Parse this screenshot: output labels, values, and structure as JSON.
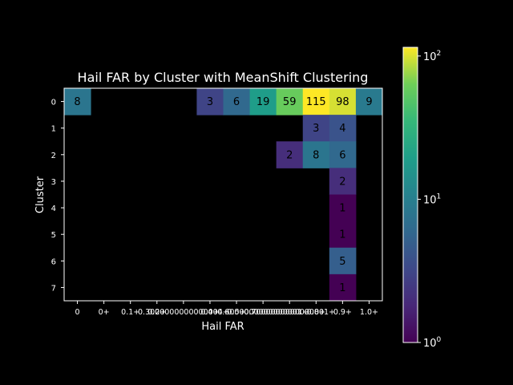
{
  "chart_data": {
    "type": "heatmap",
    "title": "Hail FAR by Cluster with MeanShift Clustering",
    "xlabel": "Hail FAR",
    "ylabel": "Cluster",
    "x_categories": [
      "0",
      "0+",
      "0.1",
      "0.2",
      "0.3000000000000004",
      "0.4",
      "0.5",
      "0.6000000000000001",
      "0.7000000000000001",
      "0.8",
      "0.9",
      "1.0+"
    ],
    "x_tick_labels": [
      "0",
      "0+",
      "0.1+",
      "0.2+",
      "0.3000000000000004+",
      "0.4+",
      "0.5+",
      "0.6000000000000001+",
      "0.7000000000000001+",
      "0.8+",
      "0.9+",
      "1.0+"
    ],
    "y_categories": [
      "0",
      "1",
      "2",
      "3",
      "4",
      "5",
      "6",
      "7"
    ],
    "cells": [
      {
        "row": 0,
        "col": 0,
        "value": 8
      },
      {
        "row": 0,
        "col": 5,
        "value": 3
      },
      {
        "row": 0,
        "col": 6,
        "value": 6
      },
      {
        "row": 0,
        "col": 7,
        "value": 19
      },
      {
        "row": 0,
        "col": 8,
        "value": 59
      },
      {
        "row": 0,
        "col": 9,
        "value": 115
      },
      {
        "row": 0,
        "col": 10,
        "value": 98
      },
      {
        "row": 0,
        "col": 11,
        "value": 9
      },
      {
        "row": 1,
        "col": 9,
        "value": 3
      },
      {
        "row": 1,
        "col": 10,
        "value": 4
      },
      {
        "row": 2,
        "col": 8,
        "value": 2
      },
      {
        "row": 2,
        "col": 9,
        "value": 8
      },
      {
        "row": 2,
        "col": 10,
        "value": 6
      },
      {
        "row": 3,
        "col": 10,
        "value": 2
      },
      {
        "row": 4,
        "col": 10,
        "value": 1
      },
      {
        "row": 5,
        "col": 10,
        "value": 1
      },
      {
        "row": 6,
        "col": 10,
        "value": 5
      },
      {
        "row": 7,
        "col": 10,
        "value": 1
      }
    ],
    "color_scale": "log",
    "colormap": "viridis",
    "colorbar_range": [
      1,
      115
    ],
    "colorbar_ticks": [
      {
        "value": 1,
        "base": "10",
        "exp": "0"
      },
      {
        "value": 10,
        "base": "10",
        "exp": "1"
      },
      {
        "value": 100,
        "base": "10",
        "exp": "2"
      }
    ],
    "background_color": "#000000",
    "grid": false
  }
}
